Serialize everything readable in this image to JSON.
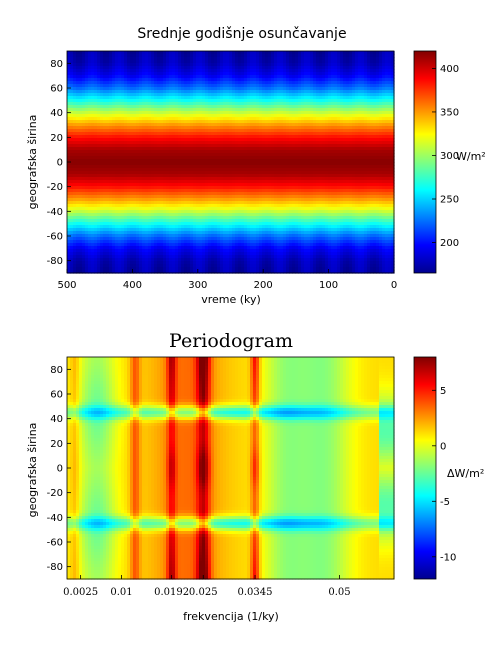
{
  "chart_data": [
    {
      "type": "heatmap",
      "title": "Srednje godišnje osunčavanje",
      "xlabel": "vreme (ky)",
      "ylabel": "geografska širina",
      "x_reversed": true,
      "xlim": [
        0,
        500
      ],
      "ylim": [
        -90,
        90
      ],
      "x_ticks": [
        500,
        400,
        300,
        200,
        100,
        0
      ],
      "y_ticks": [
        80,
        60,
        40,
        20,
        0,
        -20,
        -40,
        -60,
        -80
      ],
      "colorbar": {
        "unit": "W/m²",
        "range": [
          165,
          420
        ],
        "ticks": [
          400,
          350,
          300,
          250,
          200
        ]
      },
      "latitude_profile": [
        {
          "lat": -90,
          "value": 175
        },
        {
          "lat": -80,
          "value": 180
        },
        {
          "lat": -70,
          "value": 195
        },
        {
          "lat": -60,
          "value": 225
        },
        {
          "lat": -50,
          "value": 265
        },
        {
          "lat": -40,
          "value": 310
        },
        {
          "lat": -30,
          "value": 350
        },
        {
          "lat": -20,
          "value": 385
        },
        {
          "lat": -10,
          "value": 410
        },
        {
          "lat": 0,
          "value": 418
        },
        {
          "lat": 10,
          "value": 410
        },
        {
          "lat": 20,
          "value": 385
        },
        {
          "lat": 30,
          "value": 350
        },
        {
          "lat": 40,
          "value": 310
        },
        {
          "lat": 50,
          "value": 265
        },
        {
          "lat": 60,
          "value": 225
        },
        {
          "lat": 70,
          "value": 195
        },
        {
          "lat": 80,
          "value": 180
        },
        {
          "lat": 90,
          "value": 175
        }
      ],
      "cycle_ky": 41,
      "cycle_amplitude": 8
    },
    {
      "type": "heatmap",
      "title": "Periodogram",
      "xlabel": "frekvencija (1/ky)",
      "ylabel": "geografska širina",
      "xlim": [
        0,
        0.06
      ],
      "ylim": [
        -90,
        90
      ],
      "x_ticks": [
        "0.0025",
        "0.01",
        "0.0192",
        "0.025",
        "0.0345",
        "0.05"
      ],
      "x_tick_values": [
        0.0025,
        0.01,
        0.0192,
        0.025,
        0.0345,
        0.05
      ],
      "y_ticks": [
        80,
        60,
        40,
        20,
        0,
        -20,
        -40,
        -60,
        -80
      ],
      "colorbar": {
        "unit": "ΔW/m²",
        "range": [
          -12,
          8
        ],
        "ticks": [
          5,
          0,
          -5,
          -10
        ]
      },
      "peak_frequencies": [
        0.0192,
        0.025,
        0.0345
      ],
      "trough_latitudes": [
        -45,
        45
      ]
    }
  ]
}
